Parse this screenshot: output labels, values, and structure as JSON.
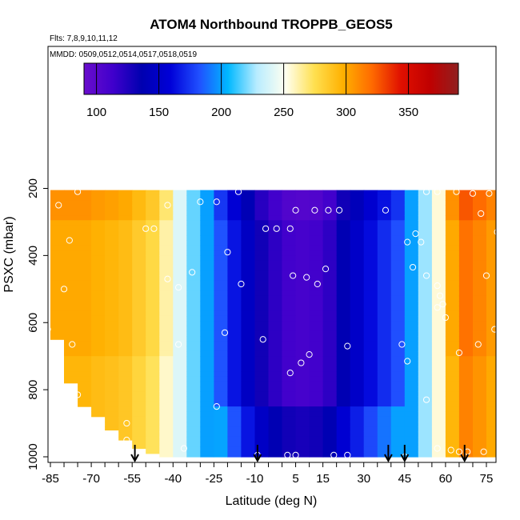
{
  "chart_data": {
    "type": "heatmap",
    "title": "ATOM4 Northbound TROPPB_GEOS5",
    "subtitle_flights": "Flts: 7,8,9,10,11,12",
    "subtitle_dates": "MMDD: 0509,0512,0514,0517,0518,0519",
    "xlabel": "Latitude (deg N)",
    "ylabel": "PSXC (mbar)",
    "xlim": [
      -87,
      88
    ],
    "ylim": [
      1000,
      150
    ],
    "x_ticks": [
      -85,
      -70,
      -55,
      -40,
      -25,
      -10,
      5,
      15,
      30,
      45,
      60,
      75
    ],
    "y_ticks": [
      200,
      400,
      600,
      800,
      1000
    ],
    "colorbar": {
      "range": [
        90,
        390
      ],
      "ticks": [
        100,
        150,
        200,
        250,
        300,
        350
      ],
      "colors": [
        "#6a0dcc",
        "#4000cc",
        "#0000b0",
        "#0000d8",
        "#2050ff",
        "#00b8ff",
        "#b8ecff",
        "#fffff0",
        "#ffe050",
        "#ffb000",
        "#ff6a00",
        "#e01000",
        "#c00000",
        "#902020"
      ]
    },
    "grid": false,
    "profile_latitudes": [
      -54,
      -9,
      39,
      45,
      67
    ],
    "heatmap_columns": [
      {
        "lat": -87,
        "p_top": 620,
        "p_bot": 620,
        "value": 300
      },
      {
        "lat": -85,
        "p_top": 210,
        "p_bot": 650,
        "value": 300
      },
      {
        "lat": -80,
        "p_top": 210,
        "p_bot": 780,
        "value": 300
      },
      {
        "lat": -75,
        "p_top": 205,
        "p_bot": 850,
        "value": 300
      },
      {
        "lat": -70,
        "p_top": 205,
        "p_bot": 880,
        "value": 297
      },
      {
        "lat": -65,
        "p_top": 205,
        "p_bot": 920,
        "value": 295
      },
      {
        "lat": -60,
        "p_top": 205,
        "p_bot": 950,
        "value": 292
      },
      {
        "lat": -55,
        "p_top": 205,
        "p_bot": 975,
        "value": 285
      },
      {
        "lat": -50,
        "p_top": 205,
        "p_bot": 990,
        "value": 278
      },
      {
        "lat": -45,
        "p_top": 205,
        "p_bot": 1000,
        "value": 262
      },
      {
        "lat": -40,
        "p_top": 205,
        "p_bot": 1000,
        "value": 240
      },
      {
        "lat": -35,
        "p_top": 205,
        "p_bot": 1000,
        "value": 218
      },
      {
        "lat": -30,
        "p_top": 205,
        "p_bot": 1000,
        "value": 200
      },
      {
        "lat": -25,
        "p_top": 205,
        "p_bot": 1000,
        "value": 183
      },
      {
        "lat": -20,
        "p_top": 205,
        "p_bot": 1000,
        "value": 165
      },
      {
        "lat": -15,
        "p_top": 205,
        "p_bot": 1000,
        "value": 147
      },
      {
        "lat": -10,
        "p_top": 205,
        "p_bot": 1000,
        "value": 130
      },
      {
        "lat": -5,
        "p_top": 205,
        "p_bot": 1000,
        "value": 120
      },
      {
        "lat": 0,
        "p_top": 205,
        "p_bot": 1000,
        "value": 112
      },
      {
        "lat": 5,
        "p_top": 205,
        "p_bot": 1000,
        "value": 110
      },
      {
        "lat": 10,
        "p_top": 205,
        "p_bot": 1000,
        "value": 112
      },
      {
        "lat": 15,
        "p_top": 205,
        "p_bot": 1000,
        "value": 120
      },
      {
        "lat": 20,
        "p_top": 205,
        "p_bot": 1000,
        "value": 138
      },
      {
        "lat": 25,
        "p_top": 205,
        "p_bot": 1000,
        "value": 150
      },
      {
        "lat": 30,
        "p_top": 205,
        "p_bot": 1000,
        "value": 162
      },
      {
        "lat": 35,
        "p_top": 205,
        "p_bot": 1000,
        "value": 172
      },
      {
        "lat": 40,
        "p_top": 205,
        "p_bot": 1000,
        "value": 182
      },
      {
        "lat": 45,
        "p_top": 205,
        "p_bot": 1000,
        "value": 200
      },
      {
        "lat": 50,
        "p_top": 205,
        "p_bot": 1000,
        "value": 225
      },
      {
        "lat": 55,
        "p_top": 205,
        "p_bot": 1000,
        "value": 255
      },
      {
        "lat": 60,
        "p_top": 205,
        "p_bot": 1000,
        "value": 300
      },
      {
        "lat": 65,
        "p_top": 205,
        "p_bot": 1000,
        "value": 318
      },
      {
        "lat": 70,
        "p_top": 205,
        "p_bot": 1000,
        "value": 312
      },
      {
        "lat": 75,
        "p_top": 205,
        "p_bot": 1000,
        "value": 305
      },
      {
        "lat": 80,
        "p_top": 205,
        "p_bot": 990,
        "value": 300
      },
      {
        "lat": 84,
        "p_top": 205,
        "p_bot": 970,
        "value": 298
      }
    ],
    "observed_points": [
      {
        "lat": -87,
        "p": 210
      },
      {
        "lat": -82,
        "p": 250
      },
      {
        "lat": -78,
        "p": 355
      },
      {
        "lat": -80,
        "p": 500
      },
      {
        "lat": -86,
        "p": 620
      },
      {
        "lat": -77,
        "p": 665
      },
      {
        "lat": -75,
        "p": 815
      },
      {
        "lat": -57,
        "p": 900
      },
      {
        "lat": -57,
        "p": 950
      },
      {
        "lat": -54,
        "p": 985
      },
      {
        "lat": -75,
        "p": 210
      },
      {
        "lat": -50,
        "p": 320
      },
      {
        "lat": -47,
        "p": 320
      },
      {
        "lat": -42,
        "p": 250
      },
      {
        "lat": -42,
        "p": 470
      },
      {
        "lat": -38,
        "p": 495
      },
      {
        "lat": -33,
        "p": 450
      },
      {
        "lat": -38,
        "p": 665
      },
      {
        "lat": -36,
        "p": 975
      },
      {
        "lat": -30,
        "p": 240
      },
      {
        "lat": -24,
        "p": 240
      },
      {
        "lat": -16,
        "p": 210
      },
      {
        "lat": -20,
        "p": 390
      },
      {
        "lat": -21,
        "p": 630
      },
      {
        "lat": -7,
        "p": 650
      },
      {
        "lat": -24,
        "p": 850
      },
      {
        "lat": -15,
        "p": 485
      },
      {
        "lat": -6,
        "p": 320
      },
      {
        "lat": -2,
        "p": 320
      },
      {
        "lat": 3,
        "p": 320
      },
      {
        "lat": 5,
        "p": 265
      },
      {
        "lat": 12,
        "p": 265
      },
      {
        "lat": 17,
        "p": 265
      },
      {
        "lat": 21,
        "p": 265
      },
      {
        "lat": 4,
        "p": 460
      },
      {
        "lat": 9,
        "p": 465
      },
      {
        "lat": 13,
        "p": 485
      },
      {
        "lat": 16,
        "p": 440
      },
      {
        "lat": 10,
        "p": 695
      },
      {
        "lat": 7,
        "p": 720
      },
      {
        "lat": 3,
        "p": 750
      },
      {
        "lat": 24,
        "p": 670
      },
      {
        "lat": -9,
        "p": 995
      },
      {
        "lat": 2,
        "p": 995
      },
      {
        "lat": 5,
        "p": 995
      },
      {
        "lat": 19,
        "p": 995
      },
      {
        "lat": 24,
        "p": 995
      },
      {
        "lat": 45,
        "p": 1000
      },
      {
        "lat": 38,
        "p": 265
      },
      {
        "lat": 46,
        "p": 360
      },
      {
        "lat": 49,
        "p": 335
      },
      {
        "lat": 51,
        "p": 360
      },
      {
        "lat": 48,
        "p": 435
      },
      {
        "lat": 53,
        "p": 460
      },
      {
        "lat": 57,
        "p": 490
      },
      {
        "lat": 58,
        "p": 520
      },
      {
        "lat": 59,
        "p": 545
      },
      {
        "lat": 57,
        "p": 555
      },
      {
        "lat": 60,
        "p": 585
      },
      {
        "lat": 65,
        "p": 690
      },
      {
        "lat": 72,
        "p": 665
      },
      {
        "lat": 78,
        "p": 620
      },
      {
        "lat": 75,
        "p": 460
      },
      {
        "lat": 79,
        "p": 330
      },
      {
        "lat": 83,
        "p": 275
      },
      {
        "lat": 80,
        "p": 275
      },
      {
        "lat": 73,
        "p": 275
      },
      {
        "lat": 70,
        "p": 215
      },
      {
        "lat": 76,
        "p": 215
      },
      {
        "lat": 64,
        "p": 210
      },
      {
        "lat": 57,
        "p": 210
      },
      {
        "lat": 53,
        "p": 210
      },
      {
        "lat": 44,
        "p": 665
      },
      {
        "lat": 46,
        "p": 715
      },
      {
        "lat": 53,
        "p": 830
      },
      {
        "lat": 57,
        "p": 975
      },
      {
        "lat": 62,
        "p": 980
      },
      {
        "lat": 65,
        "p": 985
      },
      {
        "lat": 68,
        "p": 985
      },
      {
        "lat": 74,
        "p": 985
      }
    ]
  }
}
